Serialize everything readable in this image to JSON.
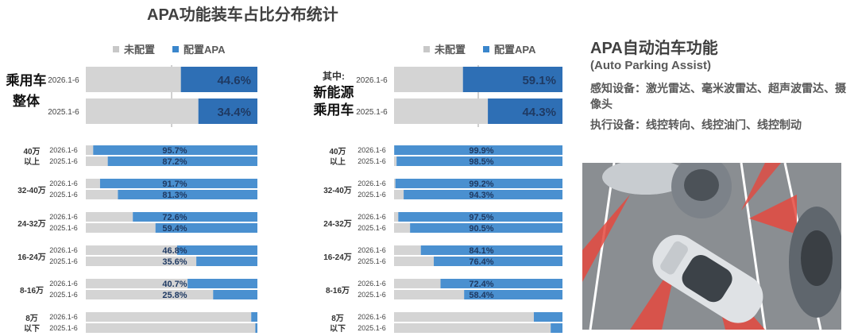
{
  "title": "APA功能装车占比分布统计",
  "legend": {
    "unconfigured": "未配置",
    "configured": "配置APA"
  },
  "colors": {
    "unconfigured": "#d4d4d4",
    "configured": "#4a90d0",
    "configured_dark": "#2e6fb5"
  },
  "info": {
    "title": "APA自动泊车功能",
    "subtitle": "(Auto Parking Assist)",
    "sensing": "感知设备：激光雷达、毫米波雷达、超声波雷达、摄像头",
    "actuation": "执行设备：线控转向、线控油门、线控制动"
  },
  "chart_data": [
    {
      "type": "bar",
      "title": "",
      "orientation": "horizontal-stacked-100",
      "panel_label_lines": [
        "乘用车",
        "整体"
      ],
      "series_names": [
        "未配置",
        "配置APA"
      ],
      "xlim": [
        0,
        100
      ],
      "overall": [
        {
          "period": "2026.1-6",
          "configured": 44.6,
          "label": "44.6%"
        },
        {
          "period": "2025.1-6",
          "configured": 34.4,
          "label": "34.4%"
        }
      ],
      "groups": [
        {
          "label_lines": [
            "40万",
            "以上"
          ],
          "rows": [
            {
              "period": "2026.1-6",
              "configured": 95.7,
              "label": "95.7%"
            },
            {
              "period": "2025.1-6",
              "configured": 87.2,
              "label": "87.2%"
            }
          ]
        },
        {
          "label_lines": [
            "32-40万"
          ],
          "rows": [
            {
              "period": "2026.1-6",
              "configured": 91.7,
              "label": "91.7%"
            },
            {
              "period": "2025.1-6",
              "configured": 81.3,
              "label": "81.3%"
            }
          ]
        },
        {
          "label_lines": [
            "24-32万"
          ],
          "rows": [
            {
              "period": "2026.1-6",
              "configured": 72.6,
              "label": "72.6%"
            },
            {
              "period": "2025.1-6",
              "configured": 59.4,
              "label": "59.4%"
            }
          ]
        },
        {
          "label_lines": [
            "16-24万"
          ],
          "rows": [
            {
              "period": "2026.1-6",
              "configured": 46.8,
              "label": "46.8%"
            },
            {
              "period": "2025.1-6",
              "configured": 35.6,
              "label": "35.6%"
            }
          ]
        },
        {
          "label_lines": [
            "8-16万"
          ],
          "rows": [
            {
              "period": "2026.1-6",
              "configured": 40.7,
              "label": "40.7%"
            },
            {
              "period": "2025.1-6",
              "configured": 25.8,
              "label": "25.8%"
            }
          ]
        },
        {
          "label_lines": [
            "8万",
            "以下"
          ],
          "rows": [
            {
              "period": "2026.1-6",
              "configured": 3.6,
              "label": ""
            },
            {
              "period": "2025.1-6",
              "configured": 1.2,
              "label": ""
            }
          ]
        }
      ]
    },
    {
      "type": "bar",
      "title": "",
      "orientation": "horizontal-stacked-100",
      "panel_label_lines": [
        "其中:",
        "新能源",
        "乘用车"
      ],
      "series_names": [
        "未配置",
        "配置APA"
      ],
      "xlim": [
        0,
        100
      ],
      "overall": [
        {
          "period": "2026.1-6",
          "configured": 59.1,
          "label": "59.1%"
        },
        {
          "period": "2025.1-6",
          "configured": 44.3,
          "label": "44.3%"
        }
      ],
      "groups": [
        {
          "label_lines": [
            "40万",
            "以上"
          ],
          "rows": [
            {
              "period": "2026.1-6",
              "configured": 99.9,
              "label": "99.9%"
            },
            {
              "period": "2025.1-6",
              "configured": 98.5,
              "label": "98.5%"
            }
          ]
        },
        {
          "label_lines": [
            "32-40万"
          ],
          "rows": [
            {
              "period": "2026.1-6",
              "configured": 99.2,
              "label": "99.2%"
            },
            {
              "period": "2025.1-6",
              "configured": 94.3,
              "label": "94.3%"
            }
          ]
        },
        {
          "label_lines": [
            "24-32万"
          ],
          "rows": [
            {
              "period": "2026.1-6",
              "configured": 97.5,
              "label": "97.5%"
            },
            {
              "period": "2025.1-6",
              "configured": 90.5,
              "label": "90.5%"
            }
          ]
        },
        {
          "label_lines": [
            "16-24万"
          ],
          "rows": [
            {
              "period": "2026.1-6",
              "configured": 84.1,
              "label": "84.1%"
            },
            {
              "period": "2025.1-6",
              "configured": 76.4,
              "label": "76.4%"
            }
          ]
        },
        {
          "label_lines": [
            "8-16万"
          ],
          "rows": [
            {
              "period": "2026.1-6",
              "configured": 72.4,
              "label": "72.4%"
            },
            {
              "period": "2025.1-6",
              "configured": 58.4,
              "label": "58.4%"
            }
          ]
        },
        {
          "label_lines": [
            "8万",
            "以下"
          ],
          "rows": [
            {
              "period": "2026.1-6",
              "configured": 17.0,
              "label": ""
            },
            {
              "period": "2025.1-6",
              "configured": 7.0,
              "label": ""
            }
          ]
        }
      ]
    }
  ]
}
